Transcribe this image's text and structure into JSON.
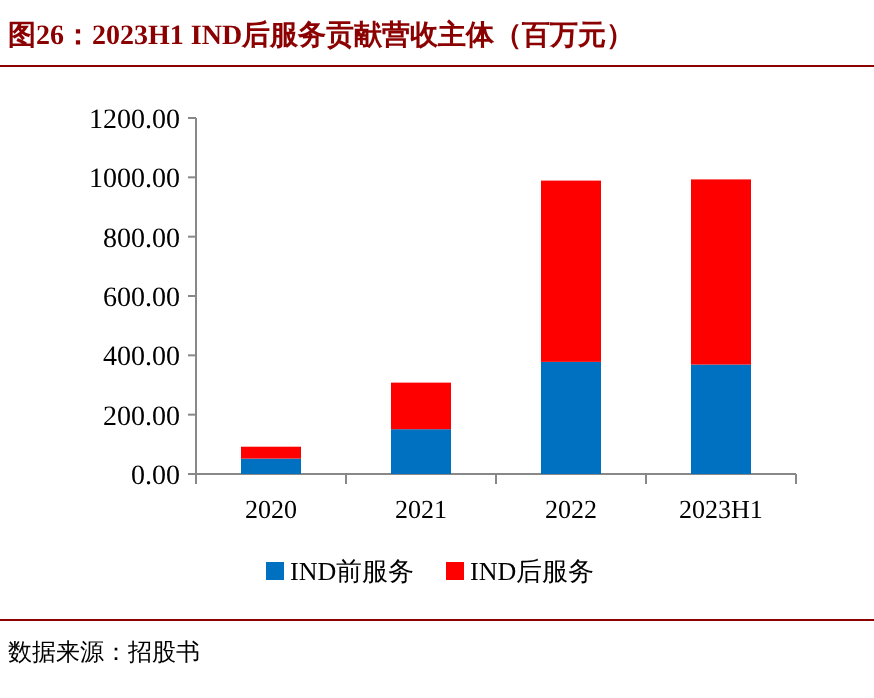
{
  "chart_data": {
    "type": "bar",
    "title": "图26：2023H1 IND后服务贡献营收主体（百万元）",
    "categories": [
      "2020",
      "2021",
      "2022",
      "2023H1"
    ],
    "stacked": true,
    "series": [
      {
        "name": "IND前服务",
        "color": "#0070c0",
        "values": [
          52,
          151,
          378,
          369
        ]
      },
      {
        "name": "IND后服务",
        "color": "#ff0000",
        "values": [
          40,
          157,
          611,
          624
        ]
      }
    ],
    "ylim": [
      0,
      1200
    ],
    "yticks": [
      {
        "value": 0,
        "label": "0.00"
      },
      {
        "value": 200,
        "label": "200.00"
      },
      {
        "value": 400,
        "label": "400.00"
      },
      {
        "value": 600,
        "label": "600.00"
      },
      {
        "value": 800,
        "label": "800.00"
      },
      {
        "value": 1000,
        "label": "1000.00"
      },
      {
        "value": 1200,
        "label": "1200.00"
      }
    ],
    "grid": false,
    "legend": "bottom",
    "annotations": [
      "数据来源：招股书"
    ]
  }
}
